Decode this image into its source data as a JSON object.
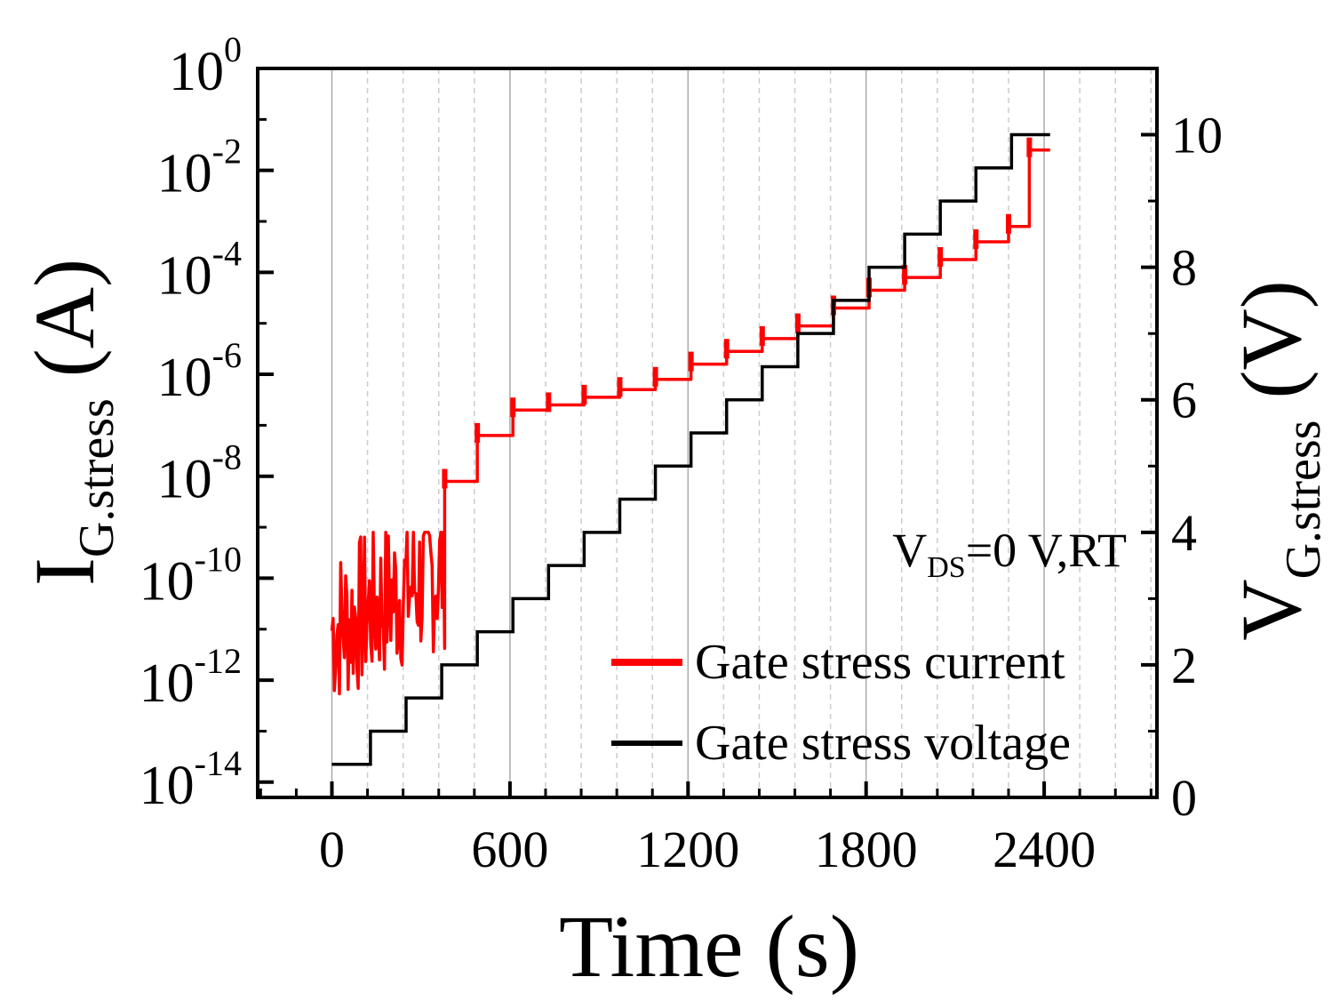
{
  "chart_data": {
    "type": "line",
    "xlabel": "Time (s)",
    "ylabel_left": {
      "main": "I",
      "sub": "G.stress",
      "unit": " (A)"
    },
    "ylabel_right": {
      "main": "V",
      "sub": "G.stress",
      "unit": " (V)"
    },
    "xlim": [
      -250,
      2780
    ],
    "ylim_left_log10": [
      -14.3,
      0
    ],
    "ylim_right": [
      0,
      11
    ],
    "x_ticks": [
      0,
      600,
      1200,
      1800,
      2400
    ],
    "x_tick_labels": [
      "0",
      "600",
      "1200",
      "1800",
      "2400"
    ],
    "left_ticks": [
      {
        "exp": 0,
        "base": "10",
        "sup": "0"
      },
      {
        "exp": -2,
        "base": "10",
        "sup": "-2"
      },
      {
        "exp": -4,
        "base": "10",
        "sup": "-4"
      },
      {
        "exp": -6,
        "base": "10",
        "sup": "-6"
      },
      {
        "exp": -8,
        "base": "10",
        "sup": "-8"
      },
      {
        "exp": -10,
        "base": "10",
        "sup": "-10"
      },
      {
        "exp": -12,
        "base": "10",
        "sup": "-12"
      },
      {
        "exp": -14,
        "base": "10",
        "sup": "-14"
      }
    ],
    "right_ticks": [
      0,
      2,
      4,
      6,
      8,
      10
    ],
    "right_tick_labels": [
      "0",
      "2",
      "4",
      "6",
      "8",
      "10"
    ],
    "grid": "vertical, every 120 s",
    "annotation": {
      "main": "V",
      "sub": "DS",
      "rest": "=0 V,RT"
    },
    "legend_position": "bottom-right",
    "series": [
      {
        "name": "Gate stress current",
        "color": "#ff0000",
        "axis": "left",
        "scale": "log",
        "steps": [
          {
            "t_start": 0,
            "t_end": 380,
            "log10_I": -11,
            "note": "noisy between 1e-13 and 1e-9"
          },
          {
            "t_start": 380,
            "t_end": 490,
            "log10_I": -8.1
          },
          {
            "t_start": 490,
            "t_end": 610,
            "log10_I": -7.2
          },
          {
            "t_start": 610,
            "t_end": 730,
            "log10_I": -6.7
          },
          {
            "t_start": 730,
            "t_end": 850,
            "log10_I": -6.6
          },
          {
            "t_start": 850,
            "t_end": 970,
            "log10_I": -6.45
          },
          {
            "t_start": 970,
            "t_end": 1090,
            "log10_I": -6.3
          },
          {
            "t_start": 1090,
            "t_end": 1210,
            "log10_I": -6.1
          },
          {
            "t_start": 1210,
            "t_end": 1330,
            "log10_I": -5.8
          },
          {
            "t_start": 1330,
            "t_end": 1450,
            "log10_I": -5.55
          },
          {
            "t_start": 1450,
            "t_end": 1570,
            "log10_I": -5.3
          },
          {
            "t_start": 1570,
            "t_end": 1690,
            "log10_I": -5.05
          },
          {
            "t_start": 1690,
            "t_end": 1810,
            "log10_I": -4.7
          },
          {
            "t_start": 1810,
            "t_end": 1930,
            "log10_I": -4.35
          },
          {
            "t_start": 1930,
            "t_end": 2050,
            "log10_I": -4.1
          },
          {
            "t_start": 2050,
            "t_end": 2170,
            "log10_I": -3.75
          },
          {
            "t_start": 2170,
            "t_end": 2280,
            "log10_I": -3.4
          },
          {
            "t_start": 2280,
            "t_end": 2350,
            "log10_I": -3.1
          },
          {
            "t_start": 2350,
            "t_end": 2420,
            "log10_I": -1.6
          }
        ]
      },
      {
        "name": "Gate stress voltage",
        "color": "#000000",
        "axis": "right",
        "scale": "linear",
        "x": [
          0,
          130,
          250,
          370,
          490,
          610,
          730,
          850,
          970,
          1090,
          1210,
          1330,
          1450,
          1570,
          1690,
          1810,
          1930,
          2050,
          2170,
          2290
        ],
        "y": [
          0.5,
          1.0,
          1.5,
          2.0,
          2.5,
          3.0,
          3.5,
          4.0,
          4.5,
          5.0,
          5.5,
          6.0,
          6.5,
          7.0,
          7.5,
          8.0,
          8.5,
          9.0,
          9.5,
          10.0
        ],
        "x_end": 2420
      }
    ]
  }
}
